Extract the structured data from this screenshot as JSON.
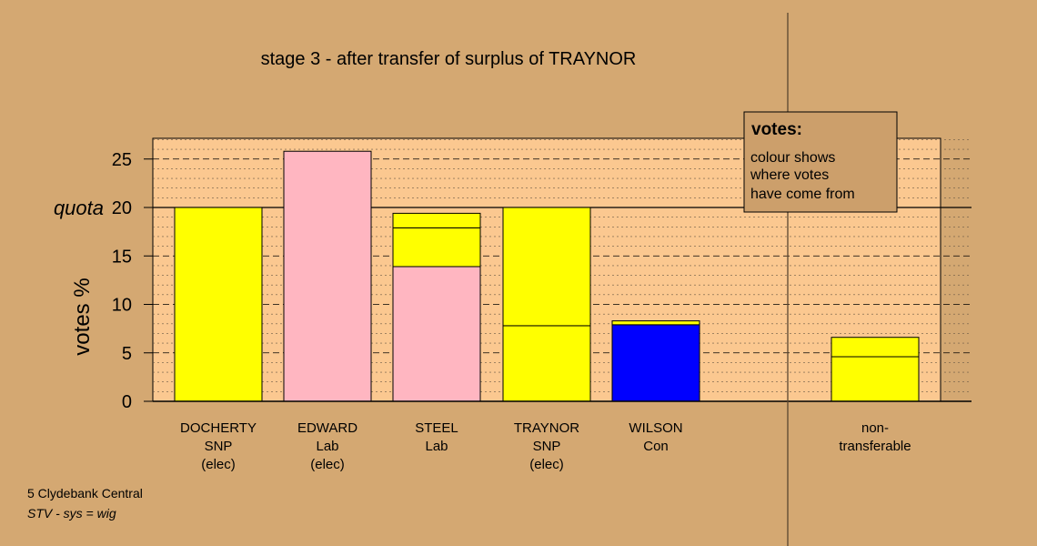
{
  "title": "stage 3 - after transfer of surplus of TRAYNOR",
  "ylabel": "votes %",
  "quota_label": "quota",
  "legend": {
    "title": "votes:",
    "lines": [
      "colour shows",
      "where votes",
      "have come from"
    ]
  },
  "footer": {
    "constituency": "5 Clydebank Central",
    "system": "STV - sys = wig"
  },
  "colors": {
    "background": "#d4a872",
    "plot_area": "#fbc890",
    "SNP": "#ffff00",
    "Lab": "#ffb6c1",
    "Con": "#0000ff",
    "legend_box": "#cc9f6b"
  },
  "chart_data": {
    "type": "bar",
    "stacked": true,
    "title": "stage 3 - after transfer of surplus of TRAYNOR",
    "ylabel": "votes %",
    "ylim": [
      0,
      27
    ],
    "yticks": [
      0,
      5,
      10,
      15,
      20,
      25
    ],
    "quota": 20,
    "candidates": [
      {
        "name": "DOCHERTY",
        "party": "SNP",
        "status": "(elec)",
        "segments": [
          {
            "from": "SNP",
            "value": 20.0
          }
        ]
      },
      {
        "name": "EDWARD",
        "party": "Lab",
        "status": "(elec)",
        "segments": [
          {
            "from": "Lab",
            "value": 25.8
          }
        ]
      },
      {
        "name": "STEEL",
        "party": "Lab",
        "status": "",
        "segments": [
          {
            "from": "Lab",
            "value": 13.9
          },
          {
            "from": "SNP",
            "value": 4.0
          },
          {
            "from": "SNP",
            "value": 1.5
          }
        ]
      },
      {
        "name": "TRAYNOR",
        "party": "SNP",
        "status": "(elec)",
        "segments": [
          {
            "from": "SNP",
            "value": 7.8
          },
          {
            "from": "SNP",
            "value": 12.2
          }
        ]
      },
      {
        "name": "WILSON",
        "party": "Con",
        "status": "",
        "segments": [
          {
            "from": "Con",
            "value": 7.9
          },
          {
            "from": "SNP",
            "value": 0.4
          }
        ]
      }
    ],
    "nontransferable": {
      "label_lines": [
        "non-",
        "transferable"
      ],
      "segments": [
        {
          "from": "SNP",
          "value": 4.6
        },
        {
          "from": "SNP",
          "value": 2.0
        }
      ]
    }
  }
}
